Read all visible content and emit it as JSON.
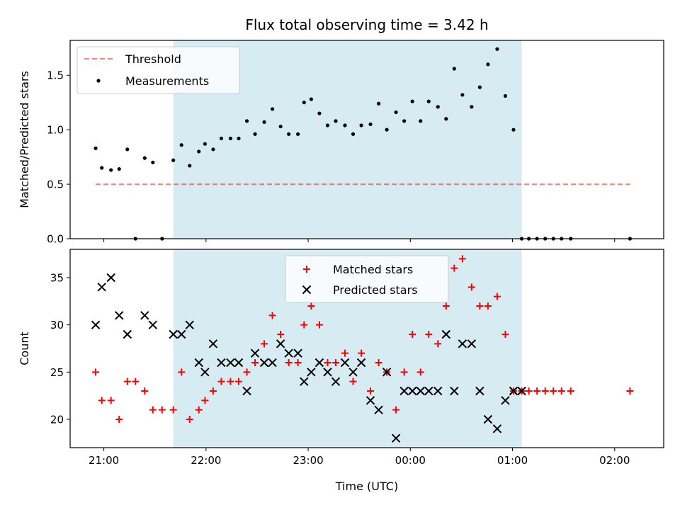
{
  "title": "Flux total observing time = 3.42 h",
  "xlabel": "Time (UTC)",
  "x_ticks": [
    "21:00",
    "22:00",
    "23:00",
    "00:00",
    "01:00",
    "02:00"
  ],
  "x_tick_hours": [
    21,
    22,
    23,
    24,
    25,
    26
  ],
  "x_range_hours": [
    20.67,
    26.48
  ],
  "shade_range_hours": [
    21.68,
    25.09
  ],
  "colors": {
    "shade": "#add8e6",
    "threshold": "#ff0000",
    "measurement": "#000000",
    "matched": "#ff0000",
    "predicted": "#000000"
  },
  "chart_data": [
    {
      "type": "scatter",
      "ylabel": "Matched/Predicted stars",
      "ylim": [
        0,
        1.82
      ],
      "y_ticks": [
        0.0,
        0.5,
        1.0,
        1.5
      ],
      "y_tick_labels": [
        "0.0",
        "0.5",
        "1.0",
        "1.5"
      ],
      "legend": {
        "position": "top-left",
        "entries": [
          "Threshold",
          "Measurements"
        ]
      },
      "threshold": {
        "name": "Threshold",
        "y": 0.5,
        "x": [
          20.92,
          26.15
        ]
      },
      "series": [
        {
          "name": "Measurements",
          "x": [
            20.92,
            20.98,
            21.07,
            21.15,
            21.23,
            21.31,
            21.4,
            21.48,
            21.57,
            21.68,
            21.76,
            21.84,
            21.93,
            21.99,
            22.07,
            22.15,
            22.24,
            22.32,
            22.4,
            22.48,
            22.57,
            22.65,
            22.73,
            22.81,
            22.9,
            22.96,
            23.03,
            23.11,
            23.19,
            23.27,
            23.36,
            23.44,
            23.52,
            23.61,
            23.69,
            23.77,
            23.86,
            23.94,
            24.02,
            24.1,
            24.18,
            24.27,
            24.35,
            24.43,
            24.51,
            24.6,
            24.68,
            24.76,
            24.85,
            24.93,
            25.01,
            25.09,
            25.16,
            25.24,
            25.32,
            25.4,
            25.48,
            25.57,
            26.15
          ],
          "y": [
            0.83,
            0.65,
            0.63,
            0.64,
            0.82,
            0.0,
            0.74,
            0.7,
            0.0,
            0.72,
            0.86,
            0.67,
            0.8,
            0.87,
            0.82,
            0.92,
            0.92,
            0.92,
            1.08,
            0.96,
            1.07,
            1.19,
            1.03,
            0.96,
            0.96,
            1.25,
            1.28,
            1.15,
            1.04,
            1.08,
            1.04,
            0.96,
            1.04,
            1.05,
            1.24,
            1.0,
            1.16,
            1.08,
            1.26,
            1.08,
            1.26,
            1.21,
            1.1,
            1.56,
            1.32,
            1.21,
            1.39,
            1.6,
            1.74,
            1.31,
            1.0,
            0.0,
            0.0,
            0.0,
            0.0,
            0.0,
            0.0,
            0.0,
            0.0
          ]
        }
      ]
    },
    {
      "type": "scatter",
      "ylabel": "Count",
      "ylim": [
        17,
        38
      ],
      "y_ticks": [
        20,
        25,
        30,
        35
      ],
      "y_tick_labels": [
        "20",
        "25",
        "30",
        "35"
      ],
      "legend": {
        "position": "top-center",
        "entries": [
          "Matched stars",
          "Predicted stars"
        ]
      },
      "series": [
        {
          "name": "Matched stars",
          "marker": "+",
          "x": [
            20.92,
            20.98,
            21.07,
            21.15,
            21.23,
            21.31,
            21.4,
            21.48,
            21.57,
            21.68,
            21.76,
            21.84,
            21.93,
            21.99,
            22.07,
            22.15,
            22.24,
            22.32,
            22.4,
            22.48,
            22.57,
            22.65,
            22.73,
            22.81,
            22.9,
            22.96,
            23.03,
            23.11,
            23.19,
            23.27,
            23.36,
            23.44,
            23.52,
            23.61,
            23.69,
            23.77,
            23.86,
            23.94,
            24.02,
            24.1,
            24.18,
            24.27,
            24.35,
            24.43,
            24.51,
            24.6,
            24.68,
            24.76,
            24.85,
            24.93,
            25.01,
            25.09,
            25.16,
            25.24,
            25.32,
            25.4,
            25.48,
            25.57,
            26.15
          ],
          "y": [
            25,
            22,
            22,
            20,
            24,
            24,
            23,
            21,
            21,
            21,
            25,
            20,
            21,
            22,
            23,
            24,
            24,
            24,
            25,
            26,
            28,
            31,
            29,
            26,
            26,
            30,
            32,
            30,
            26,
            26,
            27,
            24,
            27,
            23,
            26,
            25,
            21,
            25,
            29,
            25,
            29,
            28,
            32,
            36,
            37,
            34,
            32,
            32,
            33,
            29,
            23,
            23,
            23,
            23,
            23,
            23,
            23,
            23,
            23
          ]
        },
        {
          "name": "Predicted stars",
          "marker": "x",
          "x": [
            20.92,
            20.98,
            21.07,
            21.15,
            21.23,
            21.4,
            21.48,
            21.68,
            21.76,
            21.84,
            21.93,
            21.99,
            22.07,
            22.15,
            22.24,
            22.32,
            22.4,
            22.48,
            22.57,
            22.65,
            22.73,
            22.81,
            22.9,
            22.96,
            23.03,
            23.11,
            23.19,
            23.27,
            23.36,
            23.44,
            23.52,
            23.61,
            23.69,
            23.77,
            23.86,
            23.94,
            24.02,
            24.1,
            24.18,
            24.27,
            24.35,
            24.43,
            24.51,
            24.6,
            24.68,
            24.76,
            24.85,
            24.93,
            25.01,
            25.09
          ],
          "y": [
            30,
            34,
            35,
            31,
            29,
            31,
            30,
            29,
            29,
            30,
            26,
            25,
            28,
            26,
            26,
            26,
            23,
            27,
            26,
            26,
            28,
            27,
            27,
            24,
            25,
            26,
            25,
            24,
            26,
            25,
            26,
            22,
            21,
            25,
            18,
            23,
            23,
            23,
            23,
            23,
            29,
            23,
            28,
            28,
            23,
            20,
            19,
            22,
            23,
            23
          ]
        }
      ]
    }
  ]
}
